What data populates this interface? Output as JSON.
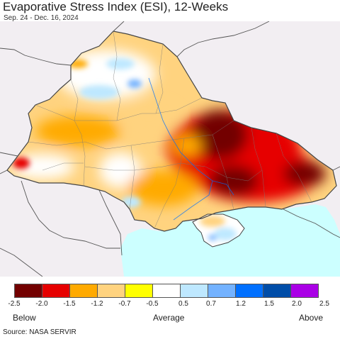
{
  "header": {
    "title": "Evaporative Stress Index (ESI), 12-Weeks",
    "subtitle": "Sep. 24 - Dec. 16, 2024"
  },
  "map": {
    "background_land": "#f2eef2",
    "sea_color": "#ccffff",
    "border_color": "#444444"
  },
  "legend": {
    "colors": [
      "#730000",
      "#e60000",
      "#ffaa00",
      "#ffd37f",
      "#ffff00",
      "#ffffff",
      "#bee8ff",
      "#73b2ff",
      "#0070ff",
      "#004da8",
      "#aa00e6"
    ],
    "ticks": [
      "-2.5",
      "-2.0",
      "-1.5",
      "-1.2",
      "-0.7",
      "-0.5",
      "0.5",
      "0.7",
      "1.2",
      "1.5",
      "2.0",
      "2.5"
    ],
    "below_label": "Below",
    "average_label": "Average",
    "above_label": "Above"
  },
  "footer": {
    "source": "Source: NASA SERVIR"
  }
}
